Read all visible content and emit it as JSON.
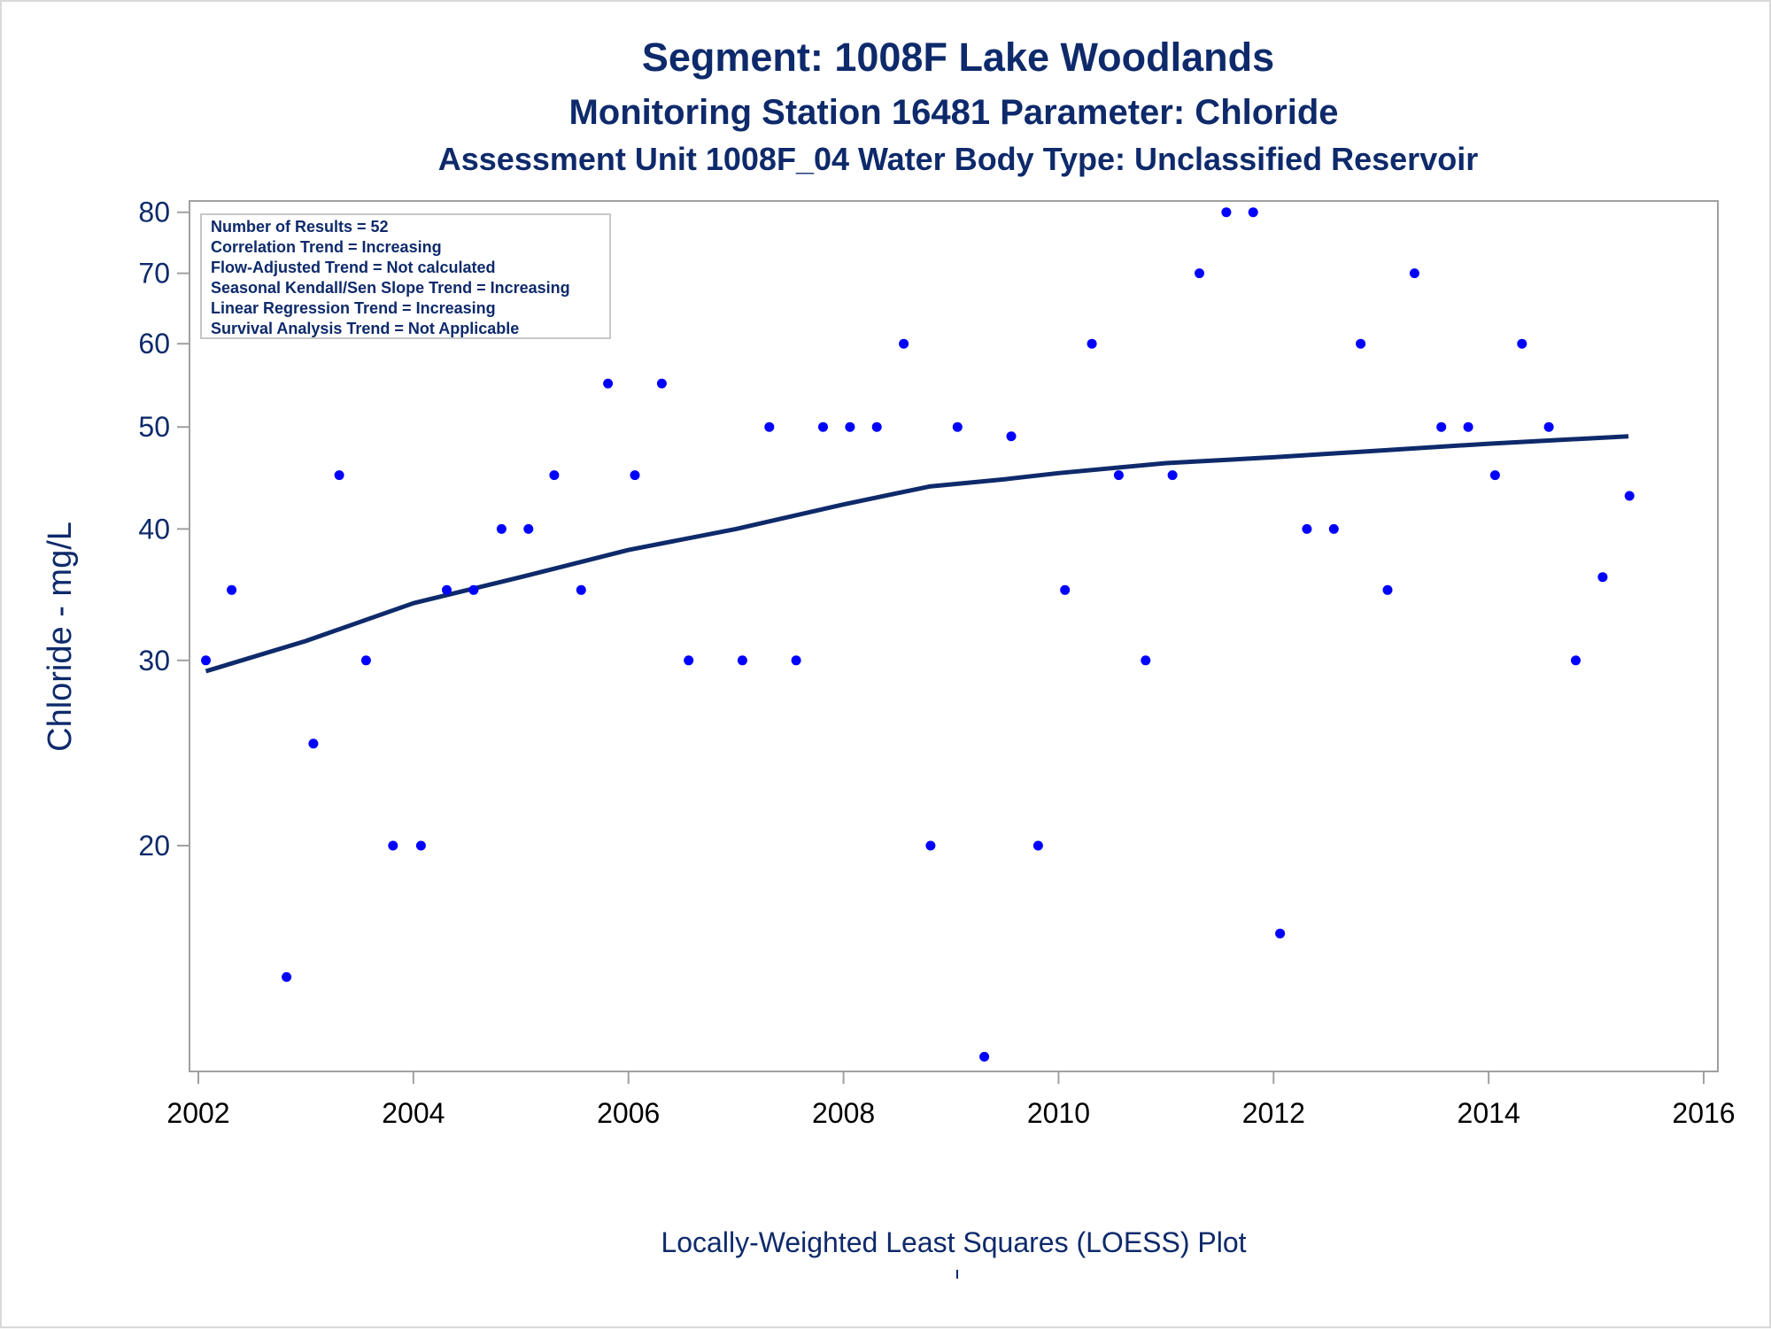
{
  "titles": {
    "line1": "Segment: 1008F  Lake Woodlands",
    "line2": "Monitoring Station 16481 Parameter: Chloride",
    "line3": "Assessment Unit 1008F_04   Water Body Type: Unclassified Reservoir"
  },
  "footnote": "Locally-Weighted Least Squares (LOESS) Plot",
  "stats_box": [
    "Number of Results = 52",
    "Correlation Trend = Increasing",
    "Flow-Adjusted Trend = Not calculated",
    "Seasonal Kendall/Sen Slope Trend = Increasing",
    "Linear Regression Trend = Increasing",
    "Survival Analysis Trend = Not Applicable"
  ],
  "colors": {
    "title": "#0e2a6b",
    "points": "#0000ff",
    "loess_line": "#0e2a6b",
    "axis": "#a0a0a0"
  },
  "chart_data": {
    "type": "scatter",
    "title": "Segment: 1008F  Lake Woodlands",
    "subtitle": "Monitoring Station 16481 Parameter: Chloride",
    "xlabel": "",
    "ylabel": "Chloride - mg/L",
    "y_scale": "log",
    "xlim": [
      2002,
      2016
    ],
    "ylim": [
      12.2,
      82
    ],
    "x_ticks": [
      2002,
      2004,
      2006,
      2008,
      2010,
      2012,
      2014,
      2016
    ],
    "y_ticks": [
      20,
      30,
      40,
      50,
      60,
      70,
      80
    ],
    "grid": false,
    "series": [
      {
        "type": "scatter",
        "x": [
          2002.07,
          2002.31,
          2002.82,
          2003.07,
          2003.31,
          2003.56,
          2003.81,
          2004.07,
          2004.31,
          2004.56,
          2004.82,
          2005.07,
          2005.31,
          2005.56,
          2005.81,
          2006.06,
          2006.31,
          2006.56,
          2007.06,
          2007.31,
          2007.56,
          2007.81,
          2008.06,
          2008.31,
          2008.56,
          2008.81,
          2009.06,
          2009.31,
          2009.56,
          2009.81,
          2010.06,
          2010.31,
          2010.56,
          2010.81,
          2011.06,
          2011.31,
          2011.56,
          2011.81,
          2012.06,
          2012.31,
          2012.56,
          2012.81,
          2013.06,
          2013.31,
          2013.56,
          2013.81,
          2014.06,
          2014.31,
          2014.56,
          2014.81,
          2015.06,
          2015.31
        ],
        "y": [
          30,
          35,
          15,
          25,
          45,
          30,
          20,
          20,
          35,
          35,
          40,
          40,
          45,
          35,
          55,
          45,
          55,
          30,
          30,
          50,
          30,
          50,
          50,
          50,
          60,
          20,
          50,
          12.6,
          49,
          20,
          35,
          60,
          45,
          30,
          45,
          70,
          80,
          80,
          16.5,
          40,
          40,
          60,
          35,
          70,
          50,
          50,
          45,
          60,
          50,
          30,
          36,
          43
        ]
      },
      {
        "type": "line",
        "name": "",
        "x": [
          2002.07,
          2003.0,
          2004.0,
          2005.0,
          2006.0,
          2007.0,
          2008.0,
          2008.8,
          2009.5,
          2010.0,
          2011.0,
          2012.0,
          2013.0,
          2014.0,
          2015.3
        ],
        "y": [
          29.3,
          31.3,
          34.0,
          36.0,
          38.2,
          40.0,
          42.2,
          43.9,
          44.6,
          45.2,
          46.2,
          46.8,
          47.5,
          48.2,
          49.0
        ]
      }
    ]
  }
}
